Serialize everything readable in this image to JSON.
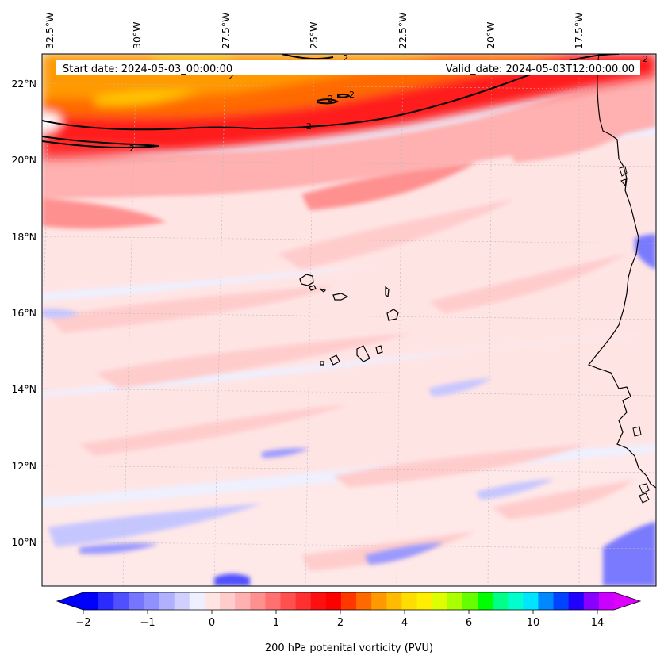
{
  "header": {
    "start_date": "Start date: 2024-05-03_00:00:00",
    "valid_date": "Valid_date: 2024-05-03T12:00:00.00"
  },
  "map": {
    "lon_labels": [
      "32.5°W",
      "30°W",
      "27.5°W",
      "25°W",
      "22.5°W",
      "20°W",
      "17.5°W"
    ],
    "lat_labels": [
      "22°N",
      "20°N",
      "18°N",
      "16°N",
      "14°N",
      "12°N",
      "10°N"
    ],
    "contour_level_label": "2",
    "ocean_color": "#eef0ff",
    "coast_color": "#000000"
  },
  "colorbar": {
    "label": "200 hPa potenital vorticity (PVU)",
    "ticks": [
      "−2",
      "−1",
      "0",
      "1",
      "2",
      "4",
      "6",
      "10",
      "14"
    ],
    "colors": [
      "#0000ff",
      "#2b2bff",
      "#5050ff",
      "#7575ff",
      "#9090ff",
      "#b0b0ff",
      "#d0d0ff",
      "#eef0ff",
      "#ffe4e4",
      "#ffcccc",
      "#ffb0b0",
      "#ff9090",
      "#ff7070",
      "#ff5050",
      "#ff3030",
      "#ff1010",
      "#ff0000",
      "#ff3800",
      "#ff6a00",
      "#ff9900",
      "#ffbb00",
      "#ffdd00",
      "#ffee00",
      "#ddff00",
      "#aaff00",
      "#66ff00",
      "#00ff00",
      "#00ff88",
      "#00ffcc",
      "#00e5ff",
      "#0088ff",
      "#0044ff",
      "#2200ff",
      "#8800ff",
      "#cc00ff"
    ],
    "under_color": "#0000ff",
    "over_color": "#dd00ff"
  }
}
